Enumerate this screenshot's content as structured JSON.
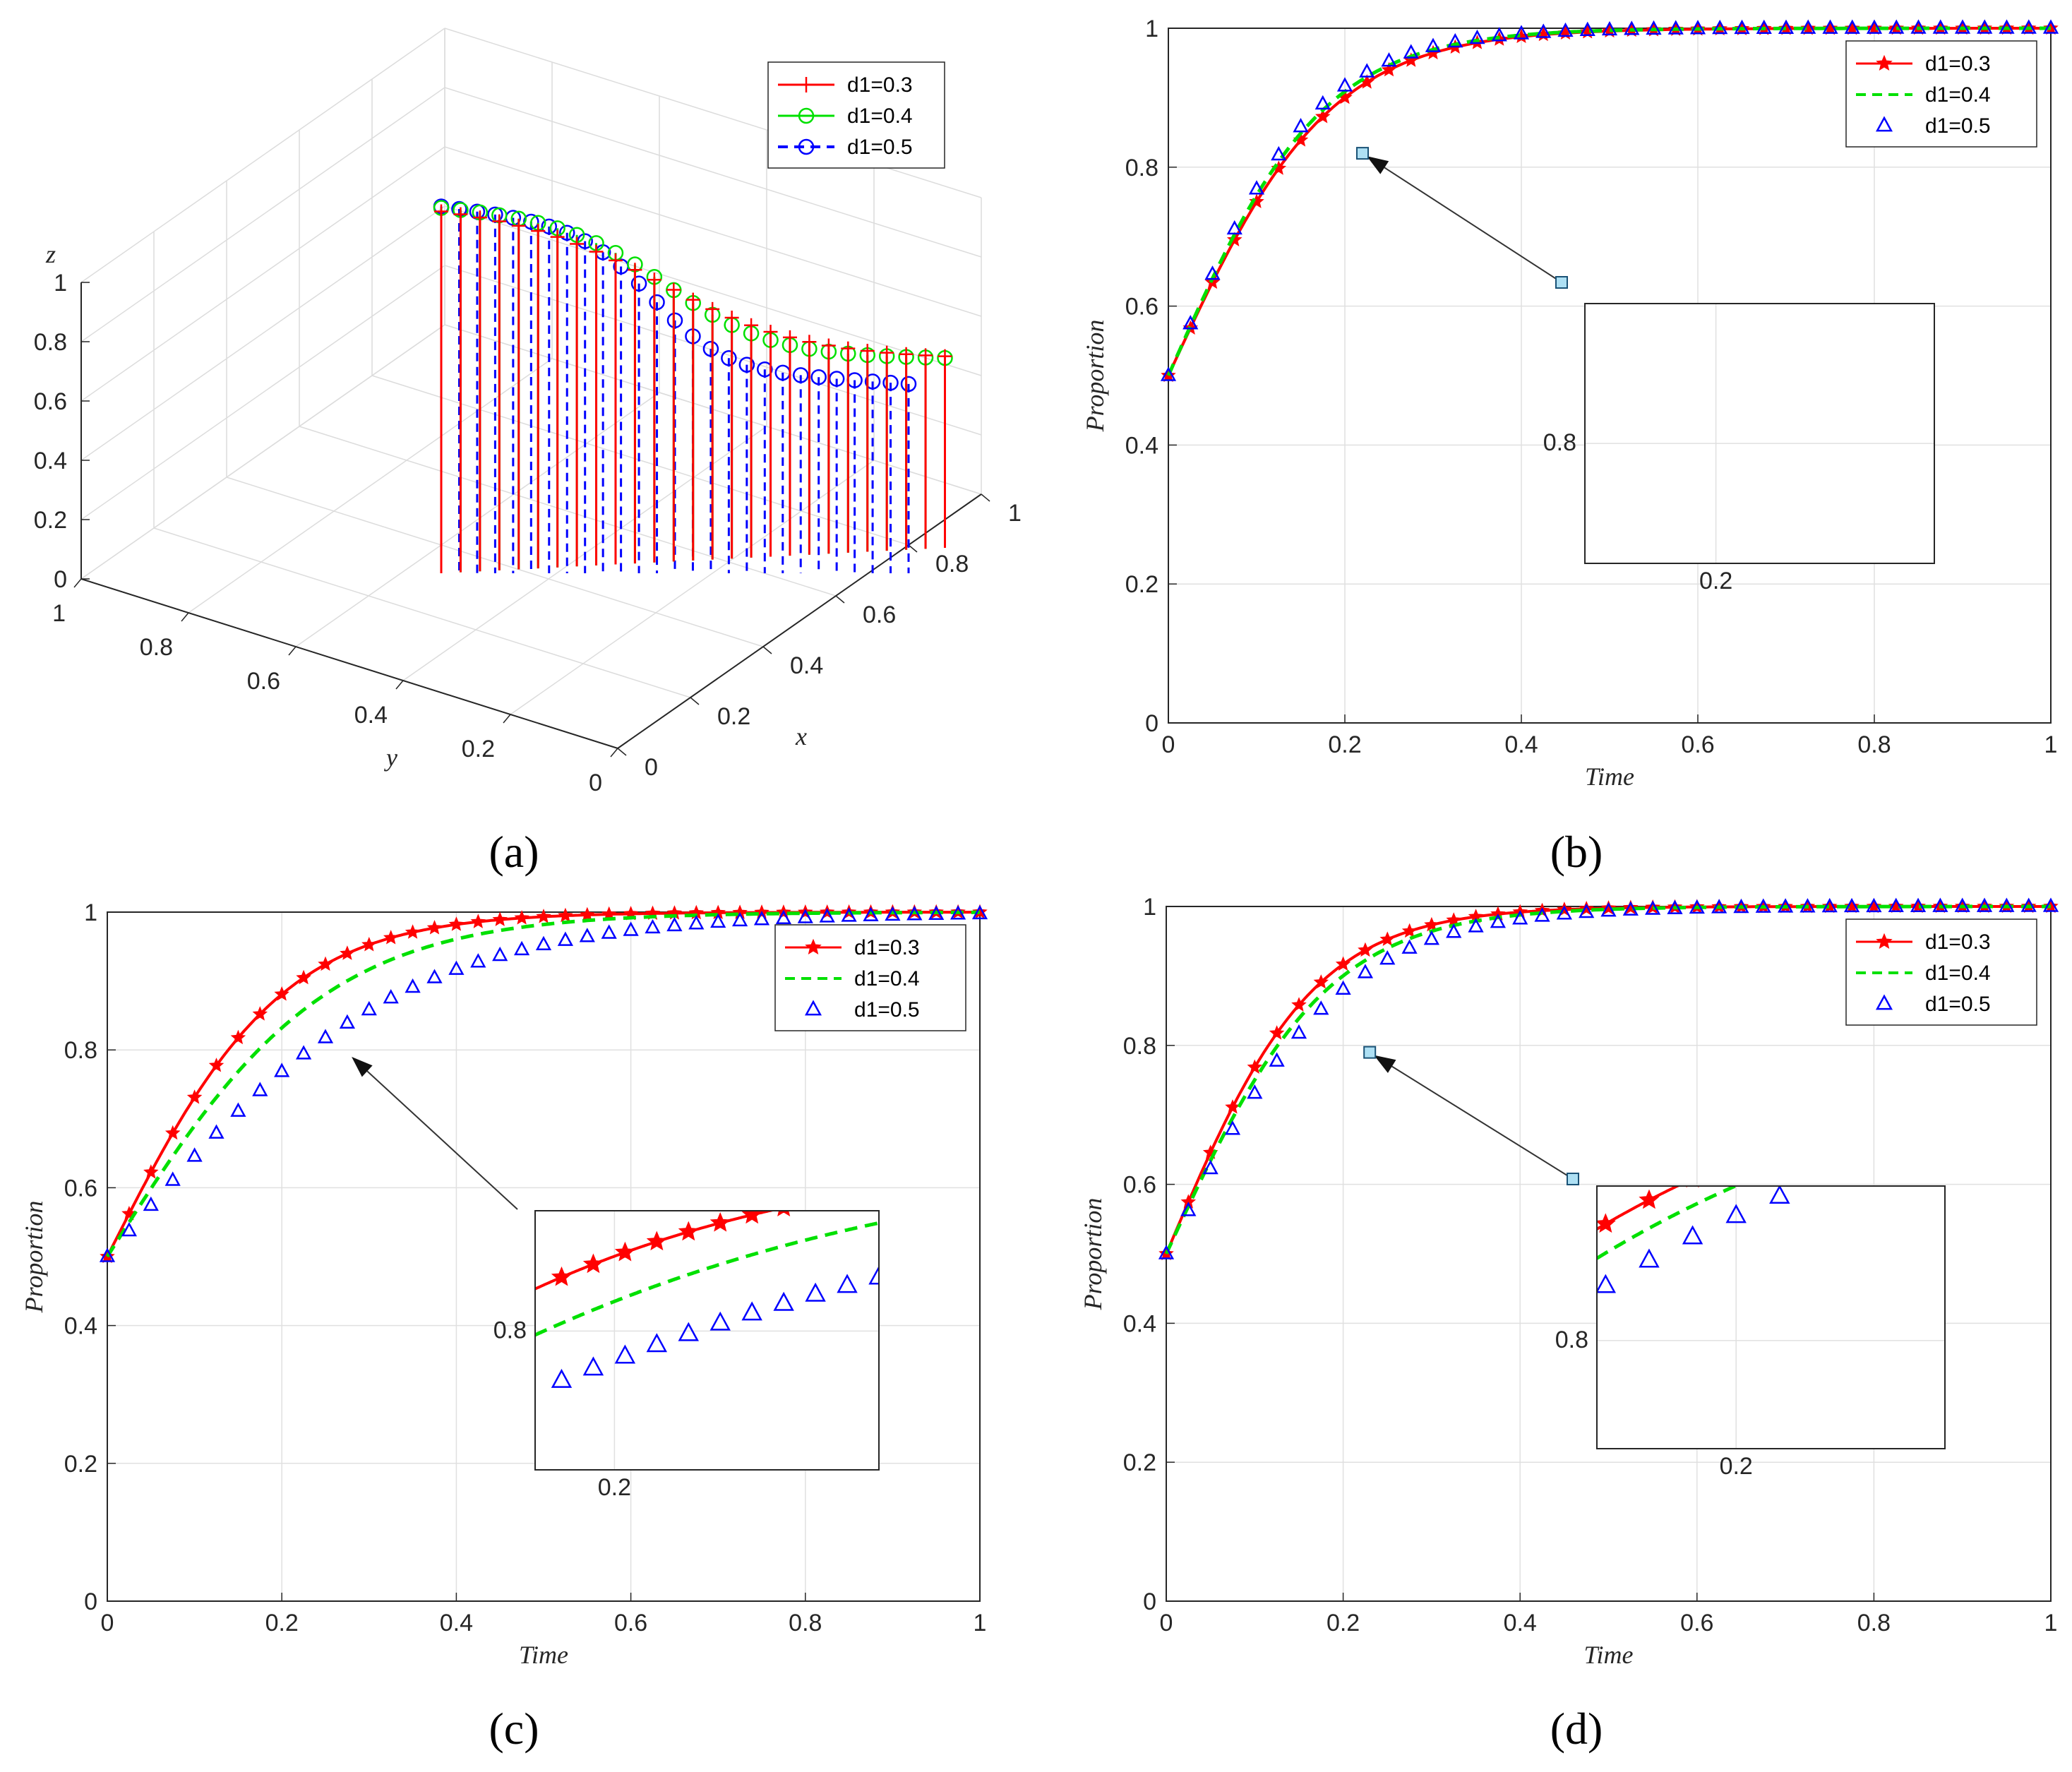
{
  "figure": {
    "panel_labels": [
      "(a)",
      "(b)",
      "(c)",
      "(d)"
    ]
  },
  "colors": {
    "d03": "#ff0000",
    "d04": "#00e000",
    "d05": "#0000ff",
    "grid": "#e0e0e0",
    "axis": "#262626",
    "marker_box": "#aee0f4"
  },
  "chart_data": [
    {
      "panel": "(a)",
      "type": "line",
      "title": "",
      "xlabel": "x",
      "ylabel": "y",
      "zlabel": "z",
      "xlim": [
        0,
        1
      ],
      "ylim": [
        0,
        1
      ],
      "zlim": [
        0,
        1
      ],
      "x_ticks": [
        "0",
        "0.2",
        "0.4",
        "0.6",
        "0.8",
        "1"
      ],
      "y_ticks": [
        "0",
        "0.2",
        "0.4",
        "0.6",
        "0.8",
        "1"
      ],
      "z_ticks": [
        "0",
        "0.2",
        "0.4",
        "0.6",
        "0.8",
        "1"
      ],
      "legend": [
        "d1=0.3",
        "d1=0.4",
        "d1=0.5"
      ],
      "legend_position": "top-right",
      "legend_subscript_italic": true,
      "series": [
        {
          "name": "d1=0.3",
          "style": "solid-plus",
          "k": 6,
          "x": [
            0.46,
            0.5,
            0.55,
            0.6,
            0.65,
            0.7,
            0.75,
            0.8,
            0.85,
            0.9,
            0.95,
            1.0
          ]
        },
        {
          "name": "d1=0.4",
          "style": "solid-circle",
          "k": 8,
          "x": [
            0.46,
            0.5,
            0.55,
            0.6,
            0.65,
            0.7,
            0.75,
            0.8,
            0.85,
            0.9,
            0.95,
            1.0
          ]
        },
        {
          "name": "d1=0.5",
          "style": "dashed-circle",
          "k": 11,
          "x": [
            0.46,
            0.5,
            0.55,
            0.6,
            0.65,
            0.7,
            0.75,
            0.8,
            0.85,
            0.9,
            0.95,
            1.0
          ]
        }
      ]
    },
    {
      "panel": "(b)",
      "type": "line",
      "xlabel": "Time",
      "ylabel": "Proportion",
      "xlim": [
        0,
        1
      ],
      "ylim": [
        0,
        1
      ],
      "x_ticks": [
        "0",
        "0.2",
        "0.4",
        "0.6",
        "0.8",
        "1"
      ],
      "y_ticks": [
        "0",
        "0.2",
        "0.4",
        "0.6",
        "0.8",
        "1"
      ],
      "legend": [
        "d1=0.3",
        "d1=0.4",
        "d1=0.5"
      ],
      "legend_position": "top-right",
      "series": [
        {
          "name": "d1=0.3",
          "style": "solid-star",
          "k": 11
        },
        {
          "name": "d1=0.4",
          "style": "dashed",
          "k": 11.5
        },
        {
          "name": "d1=0.5",
          "style": "triangle",
          "k": 12
        }
      ],
      "zoom_point": {
        "x": 0.22,
        "y": 0.82
      },
      "inset": {
        "xlim": [
          0.17,
          0.25
        ],
        "ylim": [
          0.77,
          0.835
        ],
        "x_ticks": [
          "0.2"
        ],
        "y_ticks": [
          "0.8"
        ],
        "x_tick_values": [
          0.2
        ],
        "y_tick_values": [
          0.8
        ]
      }
    },
    {
      "panel": "(c)",
      "type": "line",
      "xlabel": "Time",
      "ylabel": "Proportion",
      "xlim": [
        0,
        1
      ],
      "ylim": [
        0,
        1
      ],
      "x_ticks": [
        "0",
        "0.2",
        "0.4",
        "0.6",
        "0.8",
        "1"
      ],
      "y_ticks": [
        "0",
        "0.2",
        "0.4",
        "0.6",
        "0.8",
        "1"
      ],
      "legend": [
        "d1=0.3",
        "d1=0.4",
        "d1=0.5"
      ],
      "legend_position": "top-right",
      "series": [
        {
          "name": "d1=0.3",
          "style": "solid-star",
          "k": 10
        },
        {
          "name": "d1=0.4",
          "style": "dashed",
          "k": 8
        },
        {
          "name": "d1=0.5",
          "style": "triangle",
          "k": 6
        }
      ],
      "inset": {
        "xlim": [
          0.17,
          0.3
        ],
        "ylim": [
          0.65,
          0.93
        ],
        "x_ticks": [
          "0.2"
        ],
        "y_ticks": [
          "0.8"
        ],
        "x_tick_values": [
          0.2
        ],
        "y_tick_values": [
          0.8
        ]
      }
    },
    {
      "panel": "(d)",
      "type": "line",
      "xlabel": "Time",
      "ylabel": "Proportion",
      "xlim": [
        0,
        1
      ],
      "ylim": [
        0,
        1
      ],
      "x_ticks": [
        "0",
        "0.2",
        "0.4",
        "0.6",
        "0.8",
        "1"
      ],
      "y_ticks": [
        "0",
        "0.2",
        "0.4",
        "0.6",
        "0.8",
        "1"
      ],
      "legend": [
        "d1=0.3",
        "d1=0.4",
        "d1=0.5"
      ],
      "legend_position": "top-right",
      "series": [
        {
          "name": "d1=0.3",
          "style": "solid-star",
          "k": 12
        },
        {
          "name": "d1=0.4",
          "style": "dashed",
          "k": 11
        },
        {
          "name": "d1=0.5",
          "style": "triangle",
          "k": 10
        }
      ],
      "zoom_point": {
        "x": 0.23,
        "y": 0.79
      },
      "inset": {
        "xlim": [
          0.16,
          0.26
        ],
        "ylim": [
          0.73,
          0.9
        ],
        "x_ticks": [
          "0.2"
        ],
        "y_ticks": [
          "0.8"
        ],
        "x_tick_values": [
          0.2
        ],
        "y_tick_values": [
          0.8
        ]
      }
    }
  ]
}
